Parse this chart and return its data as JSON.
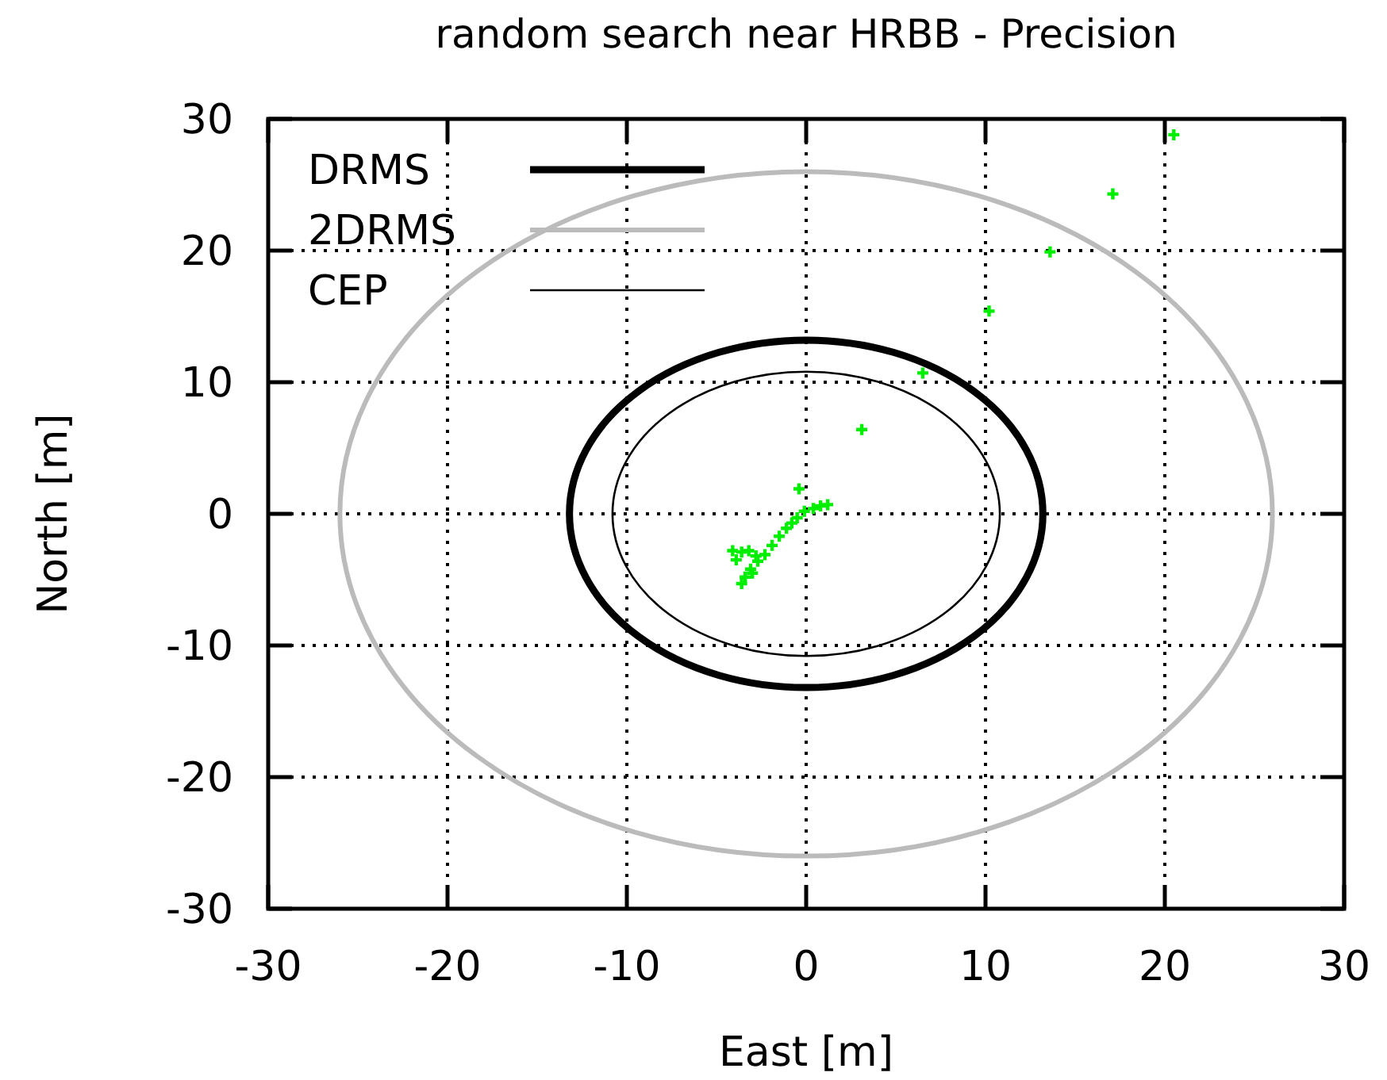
{
  "chart_data": {
    "type": "scatter",
    "title": "random search near HRBB - Precision",
    "xlabel": "East [m]",
    "ylabel": "North [m]",
    "xlim": [
      -30,
      30
    ],
    "ylim": [
      -30,
      30
    ],
    "xticks": [
      -30,
      -20,
      -10,
      0,
      10,
      20,
      30
    ],
    "yticks": [
      -30,
      -20,
      -10,
      0,
      10,
      20,
      30
    ],
    "grid": true,
    "annotations": [
      "DRMS",
      "2DRMS",
      "CEP"
    ],
    "series": [
      {
        "type": "scatter",
        "color": "#00ee00",
        "marker": "cross",
        "x": [
          20.5,
          17.1,
          13.6,
          10.2,
          6.5,
          3.1,
          -0.4,
          1.2,
          0.8,
          0.4,
          -0.1,
          -0.5,
          -0.8,
          -1.1,
          -1.5,
          -1.9,
          -2.3,
          -2.7,
          -3.1,
          -3.4,
          -3.6,
          -4.1,
          -3.6,
          -3.2,
          -2.8,
          -3.9,
          -3.0
        ],
        "values": [
          28.8,
          24.3,
          19.9,
          15.4,
          10.7,
          6.4,
          1.9,
          0.7,
          0.6,
          0.4,
          0.2,
          -0.3,
          -0.7,
          -1.1,
          -1.7,
          -2.4,
          -3.1,
          -3.6,
          -4.2,
          -4.8,
          -5.3,
          -2.8,
          -2.9,
          -2.8,
          -3.2,
          -3.5,
          -4.5
        ]
      }
    ]
  }
}
